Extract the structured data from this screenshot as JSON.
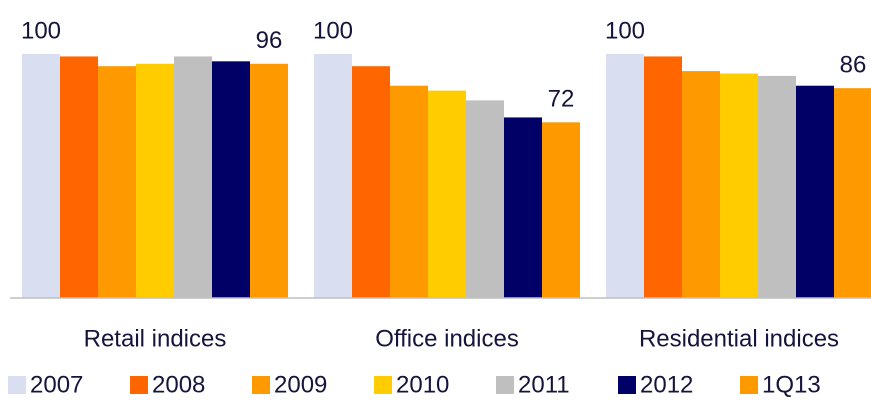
{
  "chart_data": {
    "type": "bar",
    "categories": [
      "Retail indices",
      "Office indices",
      "Residential indices"
    ],
    "ylim": [
      0,
      100
    ],
    "series": [
      {
        "name": "2007",
        "color": "#d9dff0",
        "values": [
          100,
          100,
          100
        ],
        "value_labels": [
          "100",
          "100",
          "100"
        ]
      },
      {
        "name": "2008",
        "color": "#ff6600",
        "values": [
          99,
          95,
          99
        ],
        "value_labels": [
          null,
          null,
          null
        ]
      },
      {
        "name": "2009",
        "color": "#ff9900",
        "values": [
          95,
          87,
          93
        ],
        "value_labels": [
          null,
          null,
          null
        ]
      },
      {
        "name": "2010",
        "color": "#ffcc00",
        "values": [
          96,
          85,
          92
        ],
        "value_labels": [
          null,
          null,
          null
        ]
      },
      {
        "name": "2011",
        "color": "#bfbfbf",
        "values": [
          99,
          81,
          91
        ],
        "value_labels": [
          null,
          null,
          null
        ]
      },
      {
        "name": "2012",
        "color": "#000066",
        "values": [
          97,
          74,
          87
        ],
        "value_labels": [
          null,
          null,
          null
        ]
      },
      {
        "name": "1Q13",
        "color": "#ff9900",
        "values": [
          96,
          72,
          86
        ],
        "value_labels": [
          "96",
          "72",
          "86"
        ]
      }
    ]
  }
}
